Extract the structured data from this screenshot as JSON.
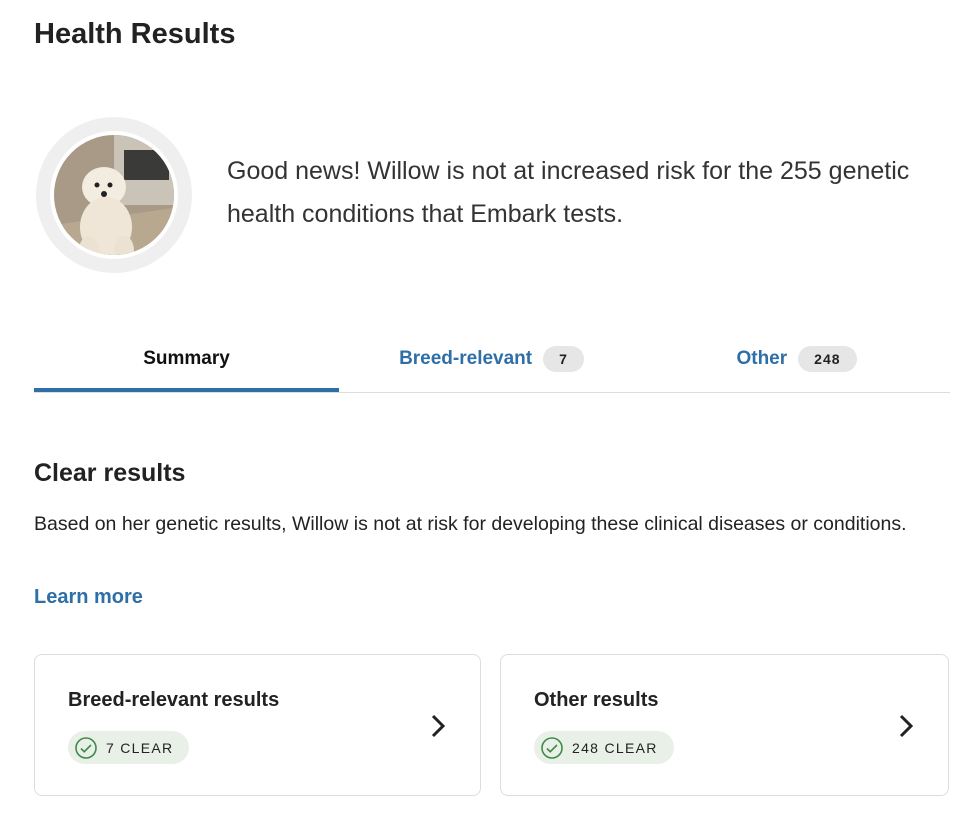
{
  "header": {
    "title": "Health Results"
  },
  "summary": {
    "message": "Good news! Willow is not at increased risk for the 255 genetic health conditions that Embark tests."
  },
  "tabs": [
    {
      "label": "Summary"
    },
    {
      "label": "Breed-relevant",
      "badge": "7"
    },
    {
      "label": "Other",
      "badge": "248"
    }
  ],
  "section": {
    "title": "Clear results",
    "description": "Based on her genetic results, Willow is not at risk for developing these clinical diseases or conditions.",
    "link": "Learn more"
  },
  "cards": [
    {
      "title": "Breed-relevant results",
      "status": "7 CLEAR"
    },
    {
      "title": "Other results",
      "status": "248 CLEAR"
    }
  ]
}
